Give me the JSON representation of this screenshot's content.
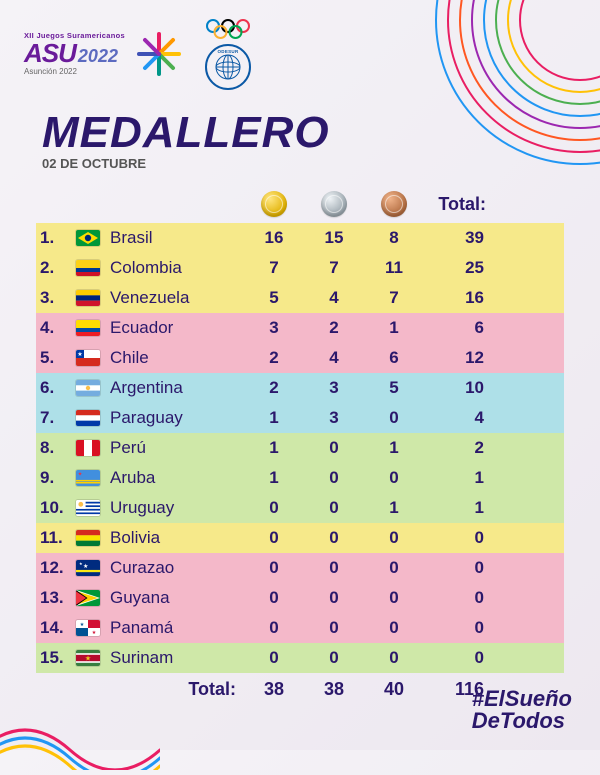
{
  "event": {
    "pretitle": "XII Juegos\nSuramericanos",
    "main": "ASU",
    "year": "2022",
    "year_top": "20",
    "year_bottom": "22",
    "sub": "Asunción 2022",
    "odesur_label": "ODESUR"
  },
  "title": "MEDALLERO",
  "date": "02 DE OCTUBRE",
  "columns": {
    "total": "Total:"
  },
  "row_colors": {
    "yellow": "#f6e98a",
    "pink": "#f4b8c9",
    "blue": "#aee0e8",
    "green": "#cfe8a8"
  },
  "rows": [
    {
      "rank": "1.",
      "country": "Brasil",
      "gold": 16,
      "silver": 15,
      "bronze": 8,
      "total": 39,
      "tint": "yellow",
      "flag": {
        "type": "tri-h",
        "c": [
          "#009739",
          "#fedd00",
          "#002776"
        ],
        "var": "brasil"
      }
    },
    {
      "rank": "2.",
      "country": "Colombia",
      "gold": 7,
      "silver": 7,
      "bronze": 11,
      "total": 25,
      "tint": "yellow",
      "flag": {
        "type": "tri-h",
        "c": [
          "#fcd116",
          "#003893",
          "#ce1126"
        ],
        "ratio": [
          2,
          1,
          1
        ]
      }
    },
    {
      "rank": "3.",
      "country": "Venezuela",
      "gold": 5,
      "silver": 4,
      "bronze": 7,
      "total": 16,
      "tint": "yellow",
      "flag": {
        "type": "tri-h",
        "c": [
          "#ffcc00",
          "#00247d",
          "#cf142b"
        ]
      }
    },
    {
      "rank": "4.",
      "country": "Ecuador",
      "gold": 3,
      "silver": 2,
      "bronze": 1,
      "total": 6,
      "tint": "pink",
      "flag": {
        "type": "tri-h",
        "c": [
          "#ffdd00",
          "#034ea2",
          "#ed1c24"
        ],
        "ratio": [
          2,
          1,
          1
        ]
      }
    },
    {
      "rank": "5.",
      "country": "Chile",
      "gold": 2,
      "silver": 4,
      "bronze": 6,
      "total": 12,
      "tint": "pink",
      "flag": {
        "type": "chile"
      }
    },
    {
      "rank": "6.",
      "country": "Argentina",
      "gold": 2,
      "silver": 3,
      "bronze": 5,
      "total": 10,
      "tint": "blue",
      "flag": {
        "type": "tri-h",
        "c": [
          "#74acdf",
          "#ffffff",
          "#74acdf"
        ],
        "sun": true
      }
    },
    {
      "rank": "7.",
      "country": "Paraguay",
      "gold": 1,
      "silver": 3,
      "bronze": 0,
      "total": 4,
      "tint": "blue",
      "flag": {
        "type": "tri-h",
        "c": [
          "#d52b1e",
          "#ffffff",
          "#0038a8"
        ]
      }
    },
    {
      "rank": "8.",
      "country": "Perú",
      "gold": 1,
      "silver": 0,
      "bronze": 1,
      "total": 2,
      "tint": "green",
      "flag": {
        "type": "tri-v",
        "c": [
          "#d91023",
          "#ffffff",
          "#d91023"
        ]
      }
    },
    {
      "rank": "9.",
      "country": "Aruba",
      "gold": 1,
      "silver": 0,
      "bronze": 0,
      "total": 1,
      "tint": "green",
      "flag": {
        "type": "aruba"
      }
    },
    {
      "rank": "10.",
      "country": "Uruguay",
      "gold": 0,
      "silver": 0,
      "bronze": 1,
      "total": 1,
      "tint": "green",
      "flag": {
        "type": "stripes",
        "c": [
          "#ffffff",
          "#0038a8"
        ],
        "n": 9,
        "sun": true
      }
    },
    {
      "rank": "11.",
      "country": "Bolivia",
      "gold": 0,
      "silver": 0,
      "bronze": 0,
      "total": 0,
      "tint": "yellow",
      "flag": {
        "type": "tri-h",
        "c": [
          "#d52b1e",
          "#f9e300",
          "#007934"
        ]
      }
    },
    {
      "rank": "12.",
      "country": "Curazao",
      "gold": 0,
      "silver": 0,
      "bronze": 0,
      "total": 0,
      "tint": "pink",
      "flag": {
        "type": "curacao"
      }
    },
    {
      "rank": "13.",
      "country": "Guyana",
      "gold": 0,
      "silver": 0,
      "bronze": 0,
      "total": 0,
      "tint": "pink",
      "flag": {
        "type": "guyana"
      }
    },
    {
      "rank": "14.",
      "country": "Panamá",
      "gold": 0,
      "silver": 0,
      "bronze": 0,
      "total": 0,
      "tint": "pink",
      "flag": {
        "type": "panama"
      }
    },
    {
      "rank": "15.",
      "country": "Surinam",
      "gold": 0,
      "silver": 0,
      "bronze": 0,
      "total": 0,
      "tint": "green",
      "flag": {
        "type": "surinam"
      }
    }
  ],
  "totals": {
    "label": "Total:",
    "gold": 38,
    "silver": 38,
    "bronze": 40,
    "total": 116
  },
  "footer": {
    "line1": "#ElSueño",
    "line2": "DeTodos"
  },
  "palette": {
    "brand_purple": "#2b186b",
    "arc_colors": [
      "#e91e63",
      "#ffc107",
      "#4caf50",
      "#2196f3",
      "#9c27b0",
      "#ff5722"
    ]
  }
}
